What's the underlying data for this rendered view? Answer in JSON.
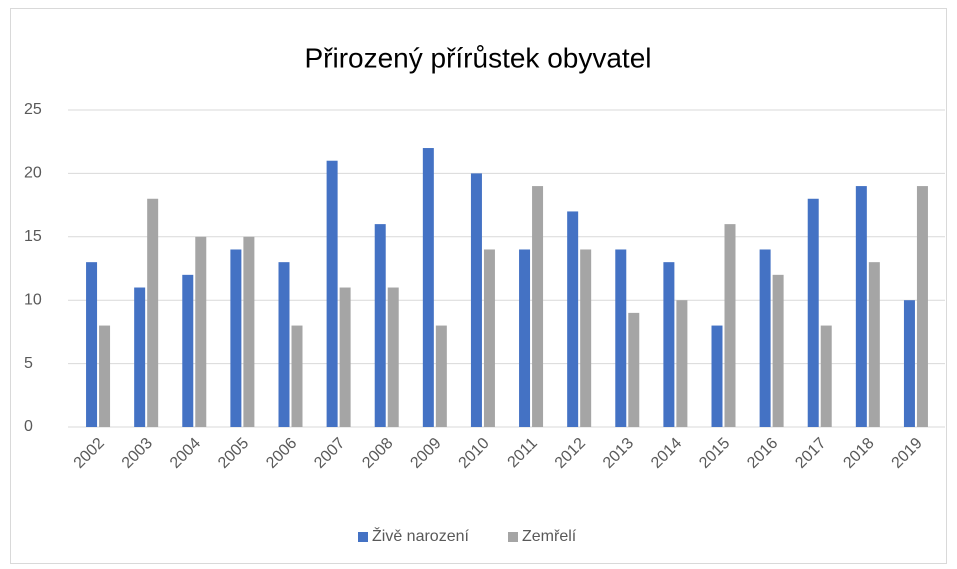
{
  "chart_data": {
    "type": "bar",
    "title": "Přirozený přírůstek obyvatel",
    "categories": [
      "2002",
      "2003",
      "2004",
      "2005",
      "2006",
      "2007",
      "2008",
      "2009",
      "2010",
      "2011",
      "2012",
      "2013",
      "2014",
      "2015",
      "2016",
      "2017",
      "2018",
      "2019"
    ],
    "series": [
      {
        "name": "Živě narození",
        "color": "#4472c4",
        "values": [
          13,
          11,
          12,
          14,
          13,
          21,
          16,
          22,
          20,
          14,
          17,
          14,
          13,
          8,
          14,
          18,
          19,
          10
        ]
      },
      {
        "name": "Zemřelí",
        "color": "#a5a5a5",
        "values": [
          8,
          18,
          15,
          15,
          8,
          11,
          11,
          8,
          14,
          19,
          14,
          9,
          10,
          16,
          12,
          8,
          13,
          19
        ]
      }
    ],
    "ylim": [
      0,
      25
    ],
    "yticks": [
      0,
      5,
      10,
      15,
      20,
      25
    ],
    "grid": true,
    "legend": "bottom"
  }
}
